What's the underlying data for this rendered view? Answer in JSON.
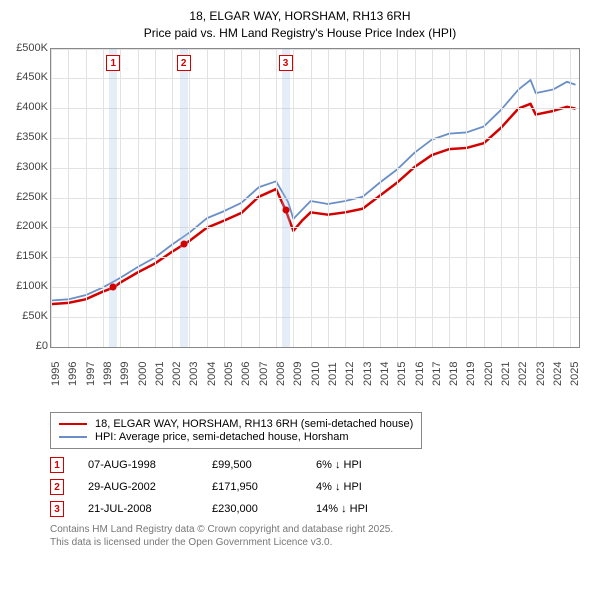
{
  "title": {
    "line1": "18, ELGAR WAY, HORSHAM, RH13 6RH",
    "line2": "Price paid vs. HM Land Registry's House Price Index (HPI)"
  },
  "chart": {
    "type": "line",
    "xlim": [
      1995,
      2025.5
    ],
    "ylim": [
      0,
      500000
    ],
    "ytick_step": 50000,
    "y_ticks": [
      "£0",
      "£50K",
      "£100K",
      "£150K",
      "£200K",
      "£250K",
      "£300K",
      "£350K",
      "£400K",
      "£450K",
      "£500K"
    ],
    "x_ticks": [
      1995,
      1996,
      1997,
      1998,
      1999,
      2000,
      2001,
      2002,
      2003,
      2004,
      2005,
      2006,
      2007,
      2008,
      2009,
      2010,
      2011,
      2012,
      2013,
      2014,
      2015,
      2016,
      2017,
      2018,
      2019,
      2020,
      2021,
      2022,
      2023,
      2024,
      2025
    ],
    "grid_color": "#e2e2e2",
    "background_color": "#ffffff",
    "series": {
      "subject": {
        "label": "18, ELGAR WAY, HORSHAM, RH13 6RH (semi-detached house)",
        "color": "#d40000",
        "width": 2.5,
        "points": [
          [
            1995,
            72000
          ],
          [
            1996,
            74000
          ],
          [
            1997,
            80000
          ],
          [
            1998,
            93000
          ],
          [
            1998.6,
            99500
          ],
          [
            1999,
            108000
          ],
          [
            2000,
            125000
          ],
          [
            2001,
            140000
          ],
          [
            2002,
            160000
          ],
          [
            2002.66,
            171950
          ],
          [
            2003,
            178000
          ],
          [
            2004,
            200000
          ],
          [
            2005,
            212000
          ],
          [
            2006,
            225000
          ],
          [
            2007,
            252000
          ],
          [
            2008,
            265000
          ],
          [
            2008.55,
            230000
          ],
          [
            2009,
            195000
          ],
          [
            2009.5,
            212000
          ],
          [
            2010,
            226000
          ],
          [
            2011,
            222000
          ],
          [
            2012,
            226000
          ],
          [
            2013,
            232000
          ],
          [
            2014,
            254000
          ],
          [
            2015,
            276000
          ],
          [
            2016,
            302000
          ],
          [
            2017,
            322000
          ],
          [
            2018,
            332000
          ],
          [
            2019,
            334000
          ],
          [
            2020,
            342000
          ],
          [
            2021,
            368000
          ],
          [
            2022,
            400000
          ],
          [
            2022.7,
            408000
          ],
          [
            2023,
            390000
          ],
          [
            2024,
            396000
          ],
          [
            2024.8,
            403000
          ],
          [
            2025.3,
            400000
          ]
        ]
      },
      "hpi": {
        "label": "HPI: Average price, semi-detached house, Horsham",
        "color": "#6a8fc7",
        "width": 1.8,
        "points": [
          [
            1995,
            78000
          ],
          [
            1996,
            80000
          ],
          [
            1997,
            87000
          ],
          [
            1998,
            100000
          ],
          [
            1999,
            116000
          ],
          [
            2000,
            134000
          ],
          [
            2001,
            150000
          ],
          [
            2002,
            172000
          ],
          [
            2003,
            192000
          ],
          [
            2004,
            216000
          ],
          [
            2005,
            228000
          ],
          [
            2006,
            242000
          ],
          [
            2007,
            268000
          ],
          [
            2008,
            278000
          ],
          [
            2008.7,
            243000
          ],
          [
            2009,
            215000
          ],
          [
            2009.5,
            230000
          ],
          [
            2010,
            245000
          ],
          [
            2011,
            240000
          ],
          [
            2012,
            245000
          ],
          [
            2013,
            252000
          ],
          [
            2014,
            276000
          ],
          [
            2015,
            298000
          ],
          [
            2016,
            326000
          ],
          [
            2017,
            348000
          ],
          [
            2018,
            358000
          ],
          [
            2019,
            360000
          ],
          [
            2020,
            370000
          ],
          [
            2021,
            398000
          ],
          [
            2022,
            432000
          ],
          [
            2022.7,
            448000
          ],
          [
            2023,
            426000
          ],
          [
            2024,
            432000
          ],
          [
            2024.8,
            445000
          ],
          [
            2025.3,
            440000
          ]
        ]
      }
    },
    "transaction_markers": [
      {
        "n": "1",
        "year": 1998.6
      },
      {
        "n": "2",
        "year": 2002.66
      },
      {
        "n": "3",
        "year": 2008.55
      }
    ],
    "price_dots": [
      {
        "year": 1998.6,
        "price": 99500
      },
      {
        "year": 2002.66,
        "price": 171950
      },
      {
        "year": 2008.55,
        "price": 230000
      }
    ]
  },
  "legend": {
    "subject_label": "18, ELGAR WAY, HORSHAM, RH13 6RH (semi-detached house)",
    "hpi_label": "HPI: Average price, semi-detached house, Horsham"
  },
  "transactions": [
    {
      "n": "1",
      "date": "07-AUG-1998",
      "price": "£99,500",
      "diff": "6% ↓ HPI"
    },
    {
      "n": "2",
      "date": "29-AUG-2002",
      "price": "£171,950",
      "diff": "4% ↓ HPI"
    },
    {
      "n": "3",
      "date": "21-JUL-2008",
      "price": "£230,000",
      "diff": "14% ↓ HPI"
    }
  ],
  "footer": {
    "line1": "Contains HM Land Registry data © Crown copyright and database right 2025.",
    "line2": "This data is licensed under the Open Government Licence v3.0."
  }
}
